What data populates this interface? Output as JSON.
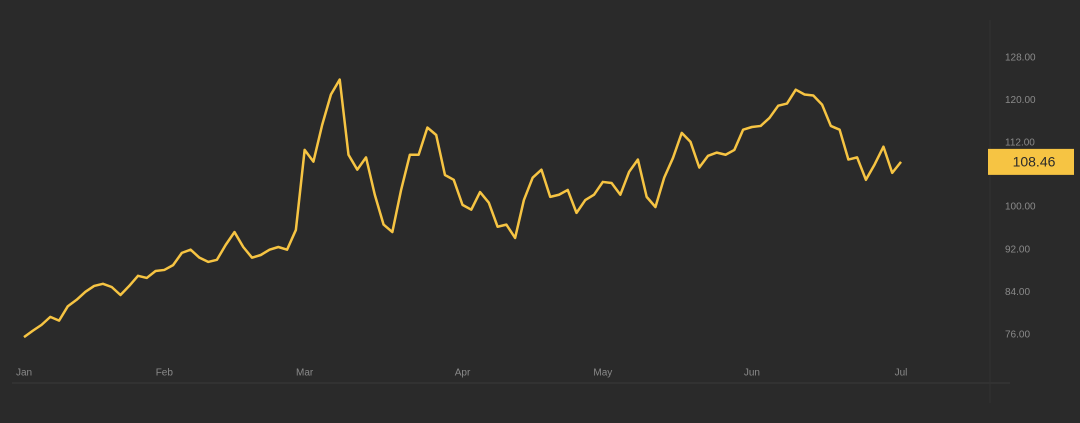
{
  "chart_data": {
    "type": "line",
    "categories": [
      "Jan",
      null,
      null,
      null,
      null,
      null,
      null,
      null,
      null,
      null,
      null,
      null,
      null,
      null,
      null,
      null,
      "Feb",
      null,
      null,
      null,
      null,
      null,
      null,
      null,
      null,
      null,
      null,
      null,
      null,
      null,
      null,
      null,
      "Mar",
      null,
      null,
      null,
      null,
      null,
      null,
      null,
      null,
      null,
      null,
      null,
      null,
      null,
      null,
      null,
      null,
      null,
      "Apr",
      null,
      null,
      null,
      null,
      null,
      null,
      null,
      null,
      null,
      null,
      null,
      null,
      null,
      null,
      null,
      "May",
      null,
      null,
      null,
      null,
      null,
      null,
      null,
      null,
      null,
      null,
      null,
      null,
      null,
      null,
      null,
      null,
      "Jun",
      null,
      null,
      null,
      null,
      null,
      null,
      null,
      null,
      null,
      null,
      null,
      null,
      null,
      null,
      null,
      null,
      "Jul"
    ],
    "series": [
      {
        "color": "#f6c443",
        "values": [
          75.6,
          76.8,
          77.9,
          79.4,
          78.7,
          81.4,
          82.6,
          84.1,
          85.2,
          85.6,
          85.0,
          83.5,
          85.2,
          87.1,
          86.7,
          88.0,
          88.2,
          89.1,
          91.4,
          92.0,
          90.5,
          89.7,
          90.1,
          92.9,
          95.3,
          92.5,
          90.5,
          91.0,
          92.0,
          92.5,
          92.0,
          95.7,
          110.7,
          108.5,
          115.4,
          121.1,
          123.9,
          109.8,
          107.0,
          109.3,
          102.3,
          96.7,
          95.3,
          103.2,
          109.8,
          109.8,
          114.9,
          113.5,
          106.0,
          105.1,
          100.4,
          99.5,
          102.8,
          100.8,
          96.3,
          96.7,
          94.2,
          101.3,
          105.5,
          107.0,
          101.9,
          102.3,
          103.2,
          98.9,
          101.3,
          102.3,
          104.7,
          104.5,
          102.3,
          106.6,
          108.9,
          101.9,
          100.0,
          105.5,
          109.2,
          113.9,
          112.2,
          107.4,
          109.6,
          110.2,
          109.8,
          110.7,
          114.5,
          115.0,
          115.2,
          116.7,
          119.0,
          119.4,
          122.0,
          121.1,
          120.9,
          119.2,
          115.2,
          114.5,
          108.9,
          109.3,
          105.1,
          108.0,
          111.3,
          106.4,
          108.46
        ]
      }
    ],
    "ylim": [
      67,
      136
    ],
    "yticks": [
      {
        "value": 76,
        "label": "76.00"
      },
      {
        "value": 84,
        "label": "84.00"
      },
      {
        "value": 92,
        "label": "92.00"
      },
      {
        "value": 100,
        "label": "100.00"
      },
      {
        "value": 112,
        "label": "112.00"
      },
      {
        "value": 120,
        "label": "120.00"
      },
      {
        "value": 128,
        "label": "128.00"
      }
    ],
    "grid": false
  }
}
